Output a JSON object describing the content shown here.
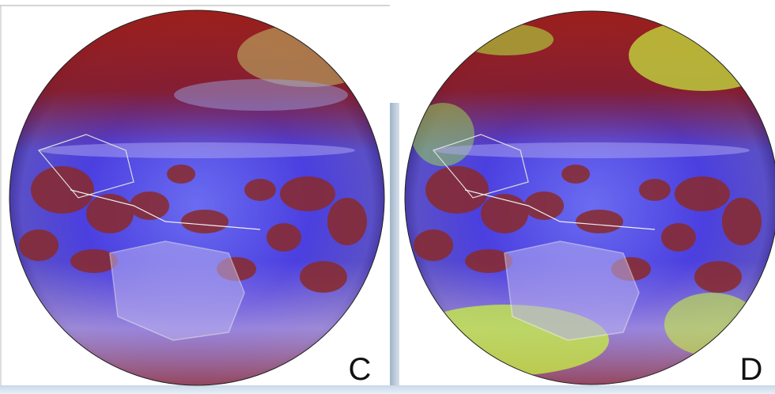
{
  "panels": [
    {
      "label": "C"
    },
    {
      "label": "D"
    }
  ]
}
